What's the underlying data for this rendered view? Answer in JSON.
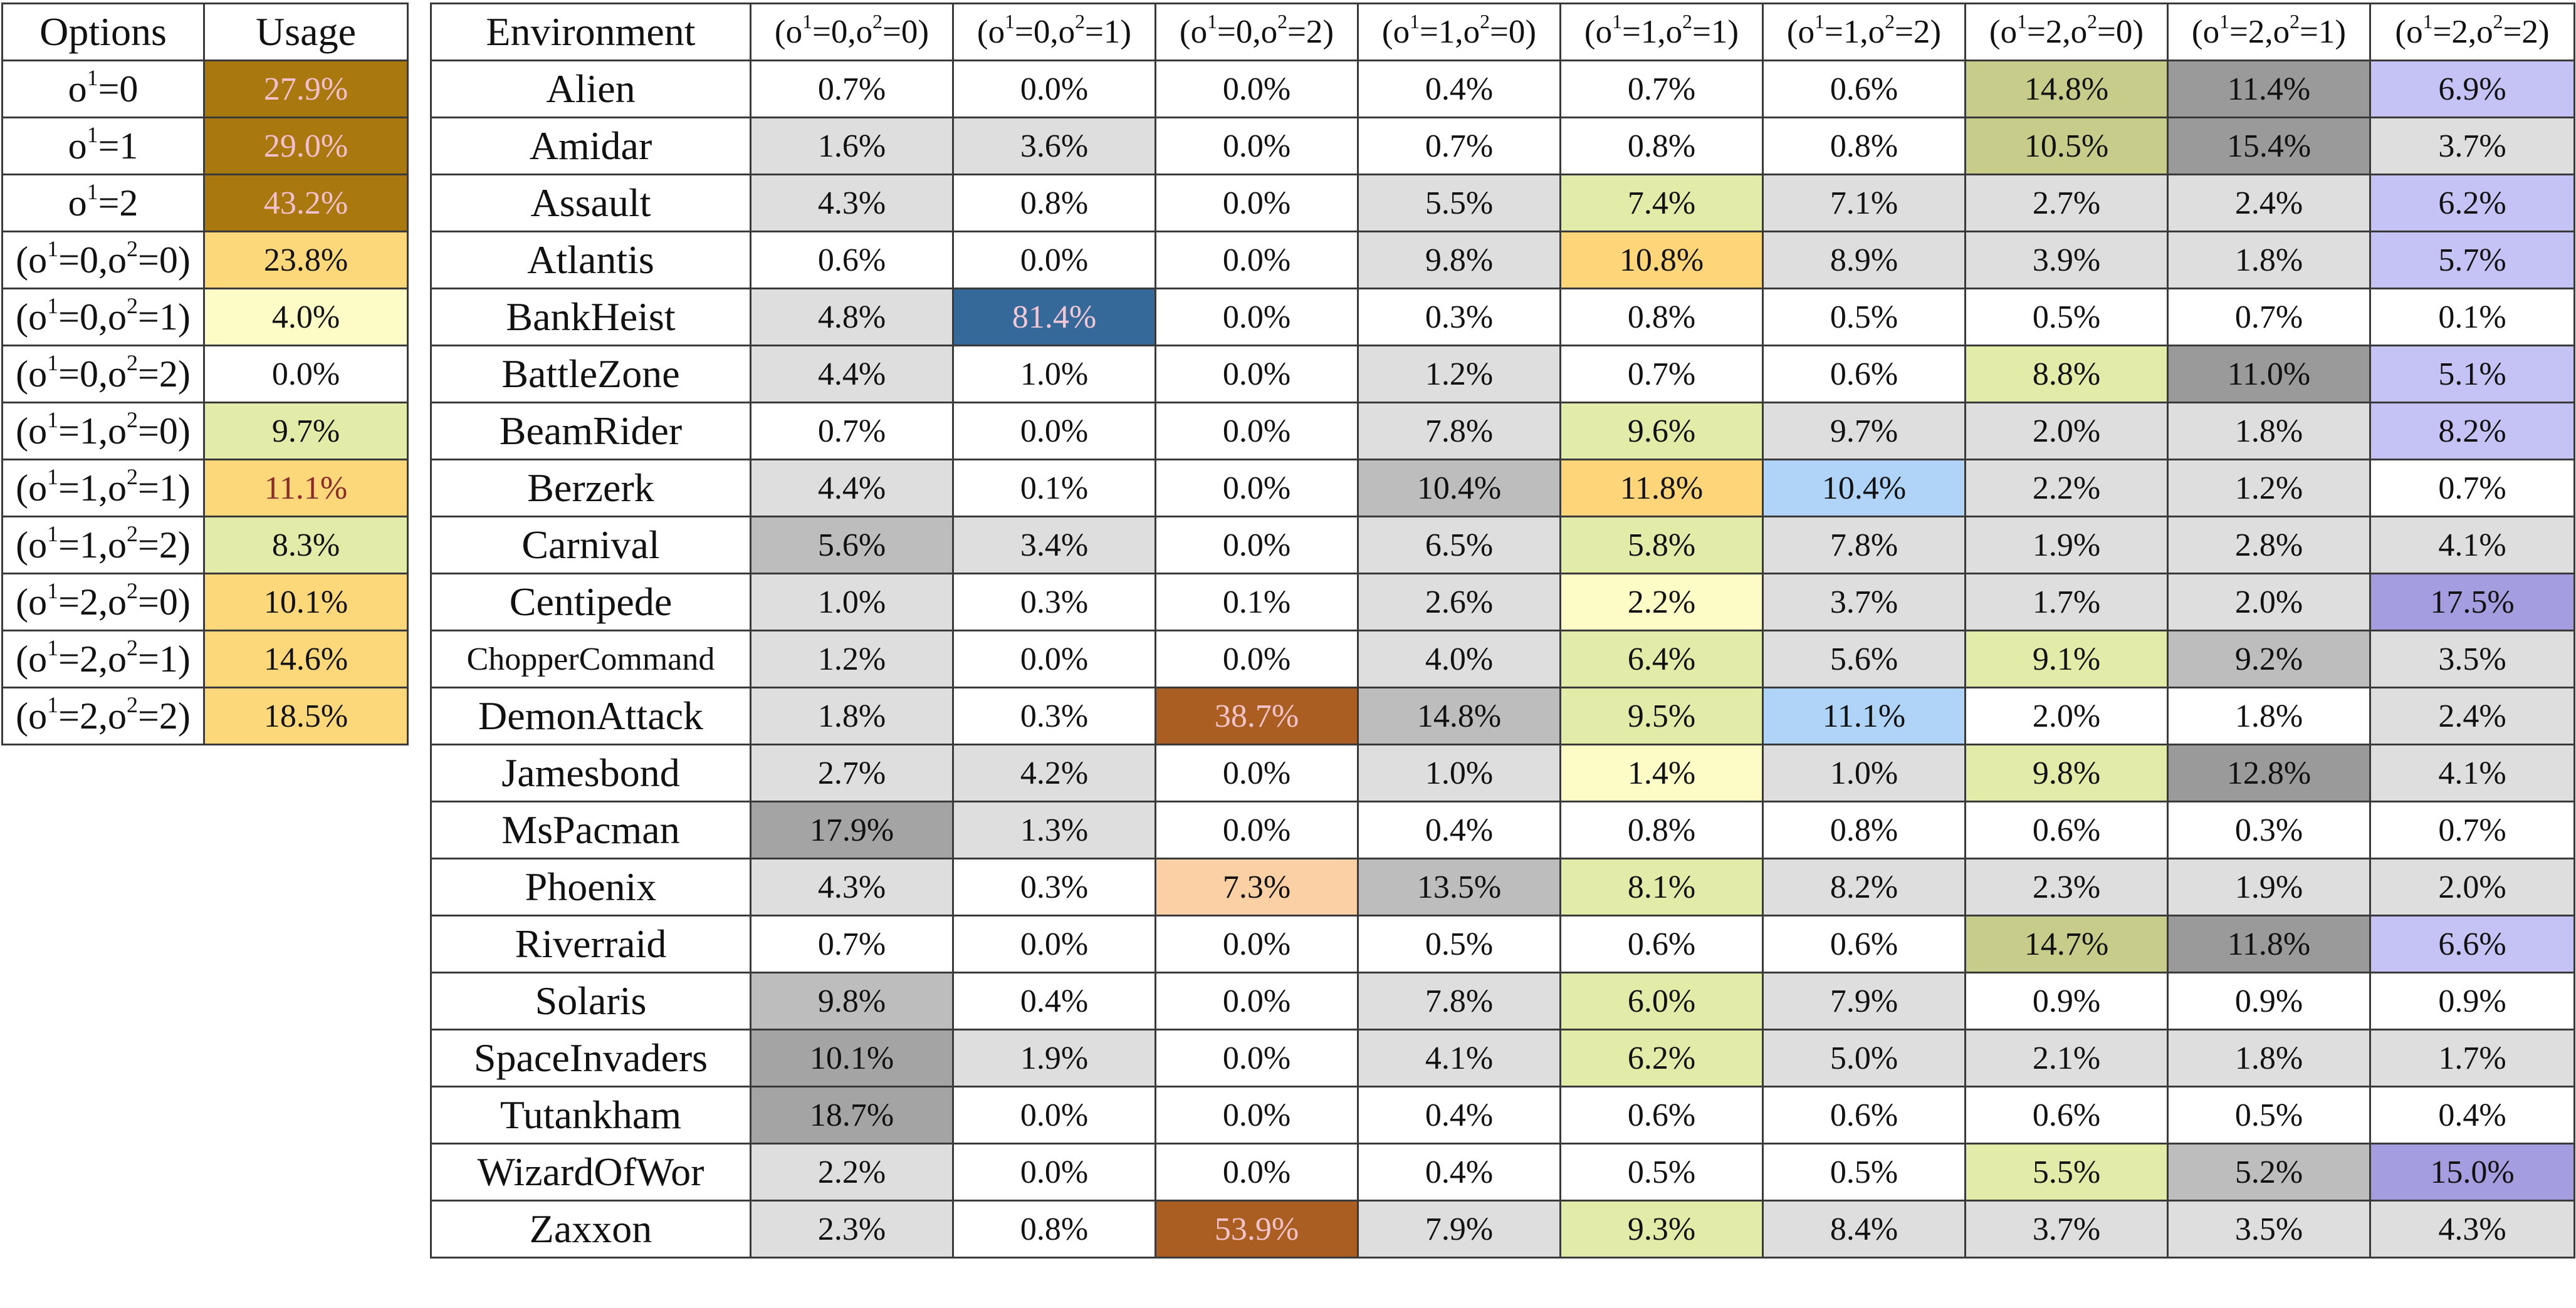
{
  "usage_table": {
    "headers": {
      "options": "Options",
      "usage": "Usage"
    },
    "rows": [
      {
        "o1": "0",
        "o2": null,
        "usage": "27.9%",
        "bg": "#a9780e",
        "fg": "#f3c0cf"
      },
      {
        "o1": "1",
        "o2": null,
        "usage": "29.0%",
        "bg": "#a9780e",
        "fg": "#f3c0cf"
      },
      {
        "o1": "2",
        "o2": null,
        "usage": "43.2%",
        "bg": "#a9780e",
        "fg": "#f3c0cf"
      },
      {
        "o1": "0",
        "o2": "0",
        "usage": "23.8%",
        "bg": "#fdd87a",
        "fg": "#111111"
      },
      {
        "o1": "0",
        "o2": "1",
        "usage": "4.0%",
        "bg": "#fefcc6",
        "fg": "#111111"
      },
      {
        "o1": "0",
        "o2": "2",
        "usage": "0.0%",
        "bg": "#ffffff",
        "fg": "#111111"
      },
      {
        "o1": "1",
        "o2": "0",
        "usage": "9.7%",
        "bg": "#e2eca8",
        "fg": "#111111"
      },
      {
        "o1": "1",
        "o2": "1",
        "usage": "11.1%",
        "bg": "#fdd87a",
        "fg": "#8a2a2a"
      },
      {
        "o1": "1",
        "o2": "2",
        "usage": "8.3%",
        "bg": "#e2eca8",
        "fg": "#111111"
      },
      {
        "o1": "2",
        "o2": "0",
        "usage": "10.1%",
        "bg": "#fdd87a",
        "fg": "#111111"
      },
      {
        "o1": "2",
        "o2": "1",
        "usage": "14.6%",
        "bg": "#fdd87a",
        "fg": "#111111"
      },
      {
        "o1": "2",
        "o2": "2",
        "usage": "18.5%",
        "bg": "#fdd87a",
        "fg": "#111111"
      }
    ]
  },
  "env_table": {
    "env_header": "Environment",
    "columns": [
      {
        "o1": "0",
        "o2": "0"
      },
      {
        "o1": "0",
        "o2": "1"
      },
      {
        "o1": "0",
        "o2": "2"
      },
      {
        "o1": "1",
        "o2": "0"
      },
      {
        "o1": "1",
        "o2": "1"
      },
      {
        "o1": "1",
        "o2": "2"
      },
      {
        "o1": "2",
        "o2": "0"
      },
      {
        "o1": "2",
        "o2": "1"
      },
      {
        "o1": "2",
        "o2": "2"
      }
    ],
    "color_scheme": {
      "W": "#ffffff",
      "G": "#dedede",
      "M": "#bdbdbd",
      "D": "#a4a4a4",
      "K": "#9a9a9a",
      "Y": "#e2eca8",
      "L": "#fefcc6",
      "O": "#c7cc8a",
      "P": "#c5c3f5",
      "Q": "#a49ee0",
      "S": "#ffd57a",
      "B": "#b0d4f8",
      "N": "#34699a",
      "R": "#aa5e22",
      "A": "#fbd0a4"
    },
    "rows": [
      {
        "env": "Alien",
        "values": [
          "0.7%",
          "0.0%",
          "0.0%",
          "0.4%",
          "0.7%",
          "0.6%",
          "14.8%",
          "11.4%",
          "6.9%"
        ],
        "colors": "WWWWWWOKP"
      },
      {
        "env": "Amidar",
        "values": [
          "1.6%",
          "3.6%",
          "0.0%",
          "0.7%",
          "0.8%",
          "0.8%",
          "10.5%",
          "15.4%",
          "3.7%"
        ],
        "colors": "GGWWWWOKG"
      },
      {
        "env": "Assault",
        "values": [
          "4.3%",
          "0.8%",
          "0.0%",
          "5.5%",
          "7.4%",
          "7.1%",
          "2.7%",
          "2.4%",
          "6.2%"
        ],
        "colors": "GWWGYGGGP"
      },
      {
        "env": "Atlantis",
        "values": [
          "0.6%",
          "0.0%",
          "0.0%",
          "9.8%",
          "10.8%",
          "8.9%",
          "3.9%",
          "1.8%",
          "5.7%"
        ],
        "colors": "WWWGSGGGP"
      },
      {
        "env": "BankHeist",
        "values": [
          "4.8%",
          "81.4%",
          "0.0%",
          "0.3%",
          "0.8%",
          "0.5%",
          "0.5%",
          "0.7%",
          "0.1%"
        ],
        "colors": "GNWWWWWWW"
      },
      {
        "env": "BattleZone",
        "values": [
          "4.4%",
          "1.0%",
          "0.0%",
          "1.2%",
          "0.7%",
          "0.6%",
          "8.8%",
          "11.0%",
          "5.1%"
        ],
        "colors": "GWWGWWYKP"
      },
      {
        "env": "BeamRider",
        "values": [
          "0.7%",
          "0.0%",
          "0.0%",
          "7.8%",
          "9.6%",
          "9.7%",
          "2.0%",
          "1.8%",
          "8.2%"
        ],
        "colors": "WWWGYGGGP"
      },
      {
        "env": "Berzerk",
        "values": [
          "4.4%",
          "0.1%",
          "0.0%",
          "10.4%",
          "11.8%",
          "10.4%",
          "2.2%",
          "1.2%",
          "0.7%"
        ],
        "colors": "GWWMSBGGW"
      },
      {
        "env": "Carnival",
        "values": [
          "5.6%",
          "3.4%",
          "0.0%",
          "6.5%",
          "5.8%",
          "7.8%",
          "1.9%",
          "2.8%",
          "4.1%"
        ],
        "colors": "MGWGYGGGG"
      },
      {
        "env": "Centipede",
        "values": [
          "1.0%",
          "0.3%",
          "0.1%",
          "2.6%",
          "2.2%",
          "3.7%",
          "1.7%",
          "2.0%",
          "17.5%"
        ],
        "colors": "GWWGLGGGQ"
      },
      {
        "env": "ChopperCommand",
        "values": [
          "1.2%",
          "0.0%",
          "0.0%",
          "4.0%",
          "6.4%",
          "5.6%",
          "9.1%",
          "9.2%",
          "3.5%"
        ],
        "colors": "GWWGYGYMG"
      },
      {
        "env": "DemonAttack",
        "values": [
          "1.8%",
          "0.3%",
          "38.7%",
          "14.8%",
          "9.5%",
          "11.1%",
          "2.0%",
          "1.8%",
          "2.4%"
        ],
        "colors": "GWRMYBWWG"
      },
      {
        "env": "Jamesbond",
        "values": [
          "2.7%",
          "4.2%",
          "0.0%",
          "1.0%",
          "1.4%",
          "1.0%",
          "9.8%",
          "12.8%",
          "4.1%"
        ],
        "colors": "GGWGLGYKG"
      },
      {
        "env": "MsPacman",
        "values": [
          "17.9%",
          "1.3%",
          "0.0%",
          "0.4%",
          "0.8%",
          "0.8%",
          "0.6%",
          "0.3%",
          "0.7%"
        ],
        "colors": "DGWWWWWWW"
      },
      {
        "env": "Phoenix",
        "values": [
          "4.3%",
          "0.3%",
          "7.3%",
          "13.5%",
          "8.1%",
          "8.2%",
          "2.3%",
          "1.9%",
          "2.0%"
        ],
        "colors": "GWAMYGGGG"
      },
      {
        "env": "Riverraid",
        "values": [
          "0.7%",
          "0.0%",
          "0.0%",
          "0.5%",
          "0.6%",
          "0.6%",
          "14.7%",
          "11.8%",
          "6.6%"
        ],
        "colors": "WWWWWWOKP"
      },
      {
        "env": "Solaris",
        "values": [
          "9.8%",
          "0.4%",
          "0.0%",
          "7.8%",
          "6.0%",
          "7.9%",
          "0.9%",
          "0.9%",
          "0.9%"
        ],
        "colors": "MWWGYGWWW"
      },
      {
        "env": "SpaceInvaders",
        "values": [
          "10.1%",
          "1.9%",
          "0.0%",
          "4.1%",
          "6.2%",
          "5.0%",
          "2.1%",
          "1.8%",
          "1.7%"
        ],
        "colors": "DGWGYGGGG"
      },
      {
        "env": "Tutankham",
        "values": [
          "18.7%",
          "0.0%",
          "0.0%",
          "0.4%",
          "0.6%",
          "0.6%",
          "0.6%",
          "0.5%",
          "0.4%"
        ],
        "colors": "DWWWWWWWW"
      },
      {
        "env": "WizardOfWor",
        "values": [
          "2.2%",
          "0.0%",
          "0.0%",
          "0.4%",
          "0.5%",
          "0.5%",
          "5.5%",
          "5.2%",
          "15.0%"
        ],
        "colors": "GWWWWWYMQ"
      },
      {
        "env": "Zaxxon",
        "values": [
          "2.3%",
          "0.8%",
          "53.9%",
          "7.9%",
          "9.3%",
          "8.4%",
          "3.7%",
          "3.5%",
          "4.3%"
        ],
        "colors": "GWRGYGGGG"
      }
    ]
  }
}
